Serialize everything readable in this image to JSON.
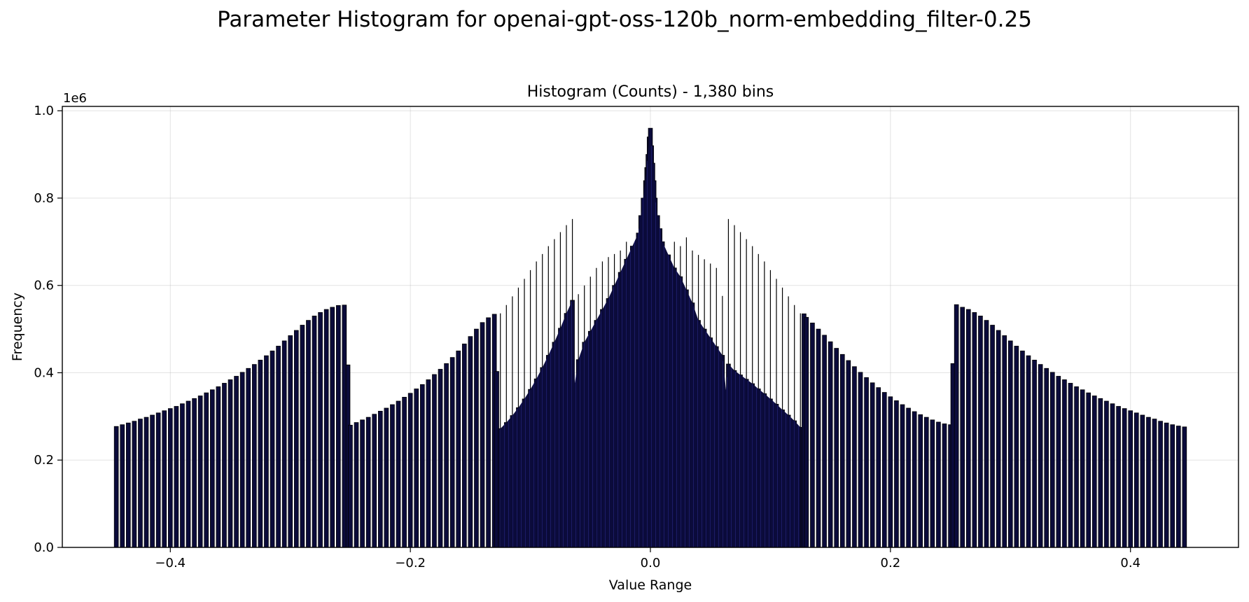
{
  "figure": {
    "suptitle": "Parameter Histogram for openai-gpt-oss-120b_norm-embedding_filter-0.25"
  },
  "chart_data": {
    "type": "bar",
    "subtype": "histogram",
    "title": "Histogram (Counts) - 1,380 bins",
    "xlabel": "Value Range",
    "ylabel": "Frequency",
    "y_offset_label": "1e6",
    "xlim": [
      -0.49,
      0.49
    ],
    "ylim": [
      0,
      1.01
    ],
    "y_scale_multiplier": 1000000,
    "xticks": [
      -0.4,
      -0.2,
      0.0,
      0.2,
      0.4
    ],
    "xtick_labels": [
      "−0.4",
      "−0.2",
      "0.0",
      "0.2",
      "0.4"
    ],
    "yticks": [
      0.0,
      0.2,
      0.4,
      0.6,
      0.8,
      1.0
    ],
    "ytick_labels": [
      "0.0",
      "0.2",
      "0.4",
      "0.6",
      "0.8",
      "1.0"
    ],
    "grid": true,
    "legend": "none",
    "bar_fill_color": "#0b0b3b",
    "bar_edge_color": "#000000",
    "bar_highlight_color": "#4a4ae0",
    "bins": {
      "x": [
        -0.445,
        -0.44,
        -0.435,
        -0.43,
        -0.425,
        -0.42,
        -0.415,
        -0.41,
        -0.405,
        -0.4,
        -0.395,
        -0.39,
        -0.385,
        -0.38,
        -0.375,
        -0.37,
        -0.365,
        -0.36,
        -0.355,
        -0.35,
        -0.345,
        -0.34,
        -0.335,
        -0.33,
        -0.325,
        -0.32,
        -0.315,
        -0.31,
        -0.305,
        -0.3,
        -0.295,
        -0.29,
        -0.285,
        -0.28,
        -0.275,
        -0.27,
        -0.265,
        -0.26,
        -0.255,
        -0.252,
        -0.25,
        -0.245,
        -0.24,
        -0.235,
        -0.23,
        -0.225,
        -0.22,
        -0.215,
        -0.21,
        -0.205,
        -0.2,
        -0.195,
        -0.19,
        -0.185,
        -0.18,
        -0.175,
        -0.17,
        -0.165,
        -0.16,
        -0.155,
        -0.15,
        -0.145,
        -0.14,
        -0.135,
        -0.13,
        -0.128,
        -0.125,
        -0.12,
        -0.115,
        -0.11,
        -0.105,
        -0.1,
        -0.095,
        -0.09,
        -0.085,
        -0.08,
        -0.075,
        -0.07,
        -0.065,
        -0.063,
        -0.06,
        -0.055,
        -0.05,
        -0.045,
        -0.04,
        -0.035,
        -0.03,
        -0.025,
        -0.02,
        -0.015,
        -0.01,
        -0.008,
        -0.006,
        -0.004,
        -0.003,
        -0.002,
        -0.001,
        0.0,
        0.001,
        0.002,
        0.003,
        0.004,
        0.006,
        0.008,
        0.01,
        0.015,
        0.02,
        0.025,
        0.03,
        0.035,
        0.04,
        0.045,
        0.05,
        0.055,
        0.06,
        0.063,
        0.065,
        0.07,
        0.075,
        0.08,
        0.085,
        0.09,
        0.095,
        0.1,
        0.105,
        0.11,
        0.115,
        0.12,
        0.125,
        0.128,
        0.13,
        0.135,
        0.14,
        0.145,
        0.15,
        0.155,
        0.16,
        0.165,
        0.17,
        0.175,
        0.18,
        0.185,
        0.19,
        0.195,
        0.2,
        0.205,
        0.21,
        0.215,
        0.22,
        0.225,
        0.23,
        0.235,
        0.24,
        0.245,
        0.25,
        0.252,
        0.255,
        0.26,
        0.265,
        0.27,
        0.275,
        0.28,
        0.285,
        0.29,
        0.295,
        0.3,
        0.305,
        0.31,
        0.315,
        0.32,
        0.325,
        0.33,
        0.335,
        0.34,
        0.345,
        0.35,
        0.355,
        0.36,
        0.365,
        0.37,
        0.375,
        0.38,
        0.385,
        0.39,
        0.395,
        0.4,
        0.405,
        0.41,
        0.415,
        0.42,
        0.425,
        0.43,
        0.435,
        0.44,
        0.445
      ],
      "counts_1e6": [
        0.277,
        0.281,
        0.285,
        0.289,
        0.294,
        0.298,
        0.303,
        0.308,
        0.313,
        0.318,
        0.323,
        0.329,
        0.335,
        0.341,
        0.347,
        0.354,
        0.361,
        0.368,
        0.376,
        0.384,
        0.392,
        0.401,
        0.41,
        0.419,
        0.429,
        0.439,
        0.45,
        0.461,
        0.473,
        0.485,
        0.497,
        0.509,
        0.52,
        0.53,
        0.538,
        0.545,
        0.55,
        0.554,
        0.555,
        0.418,
        0.28,
        0.286,
        0.292,
        0.298,
        0.305,
        0.312,
        0.319,
        0.327,
        0.335,
        0.344,
        0.353,
        0.363,
        0.373,
        0.384,
        0.396,
        0.408,
        0.421,
        0.435,
        0.45,
        0.466,
        0.483,
        0.5,
        0.515,
        0.526,
        0.534,
        0.403,
        0.272,
        0.286,
        0.302,
        0.32,
        0.34,
        0.362,
        0.386,
        0.412,
        0.44,
        0.47,
        0.502,
        0.536,
        0.566,
        0.376,
        0.43,
        0.47,
        0.495,
        0.52,
        0.545,
        0.57,
        0.6,
        0.63,
        0.66,
        0.69,
        0.72,
        0.76,
        0.8,
        0.84,
        0.87,
        0.9,
        0.94,
        0.96,
        0.92,
        0.88,
        0.84,
        0.8,
        0.76,
        0.73,
        0.7,
        0.67,
        0.64,
        0.62,
        0.59,
        0.56,
        0.52,
        0.5,
        0.48,
        0.46,
        0.44,
        0.36,
        0.42,
        0.405,
        0.395,
        0.385,
        0.375,
        0.363,
        0.352,
        0.34,
        0.328,
        0.315,
        0.303,
        0.29,
        0.275,
        0.535,
        0.527,
        0.514,
        0.5,
        0.486,
        0.471,
        0.456,
        0.442,
        0.428,
        0.414,
        0.401,
        0.389,
        0.377,
        0.366,
        0.355,
        0.345,
        0.336,
        0.327,
        0.319,
        0.311,
        0.304,
        0.298,
        0.292,
        0.287,
        0.283,
        0.281,
        0.421,
        0.556,
        0.55,
        0.545,
        0.538,
        0.53,
        0.52,
        0.509,
        0.497,
        0.485,
        0.473,
        0.461,
        0.45,
        0.439,
        0.429,
        0.419,
        0.41,
        0.401,
        0.392,
        0.384,
        0.376,
        0.368,
        0.361,
        0.354,
        0.347,
        0.341,
        0.335,
        0.329,
        0.323,
        0.318,
        0.313,
        0.308,
        0.303,
        0.298,
        0.294,
        0.289,
        0.285,
        0.281,
        0.278,
        0.276
      ],
      "outline_bars_x": [
        -0.125,
        -0.12,
        -0.115,
        -0.11,
        -0.105,
        -0.1,
        -0.095,
        -0.09,
        -0.085,
        -0.08,
        -0.075,
        -0.07,
        -0.065,
        -0.06,
        -0.055,
        -0.05,
        -0.045,
        -0.04,
        -0.035,
        -0.03,
        -0.025,
        -0.02,
        0.02,
        0.025,
        0.03,
        0.035,
        0.04,
        0.045,
        0.05,
        0.055,
        0.06,
        0.065,
        0.07,
        0.075,
        0.08,
        0.085,
        0.09,
        0.095,
        0.1,
        0.105,
        0.11,
        0.115,
        0.12,
        0.125
      ],
      "outline_bars_counts_1e6": [
        0.536,
        0.555,
        0.575,
        0.595,
        0.615,
        0.635,
        0.655,
        0.672,
        0.69,
        0.706,
        0.722,
        0.738,
        0.752,
        0.58,
        0.6,
        0.62,
        0.64,
        0.655,
        0.665,
        0.672,
        0.68,
        0.7,
        0.7,
        0.69,
        0.71,
        0.68,
        0.67,
        0.66,
        0.65,
        0.64,
        0.576,
        0.752,
        0.738,
        0.722,
        0.706,
        0.69,
        0.672,
        0.655,
        0.635,
        0.615,
        0.595,
        0.575,
        0.555,
        0.536
      ]
    }
  }
}
